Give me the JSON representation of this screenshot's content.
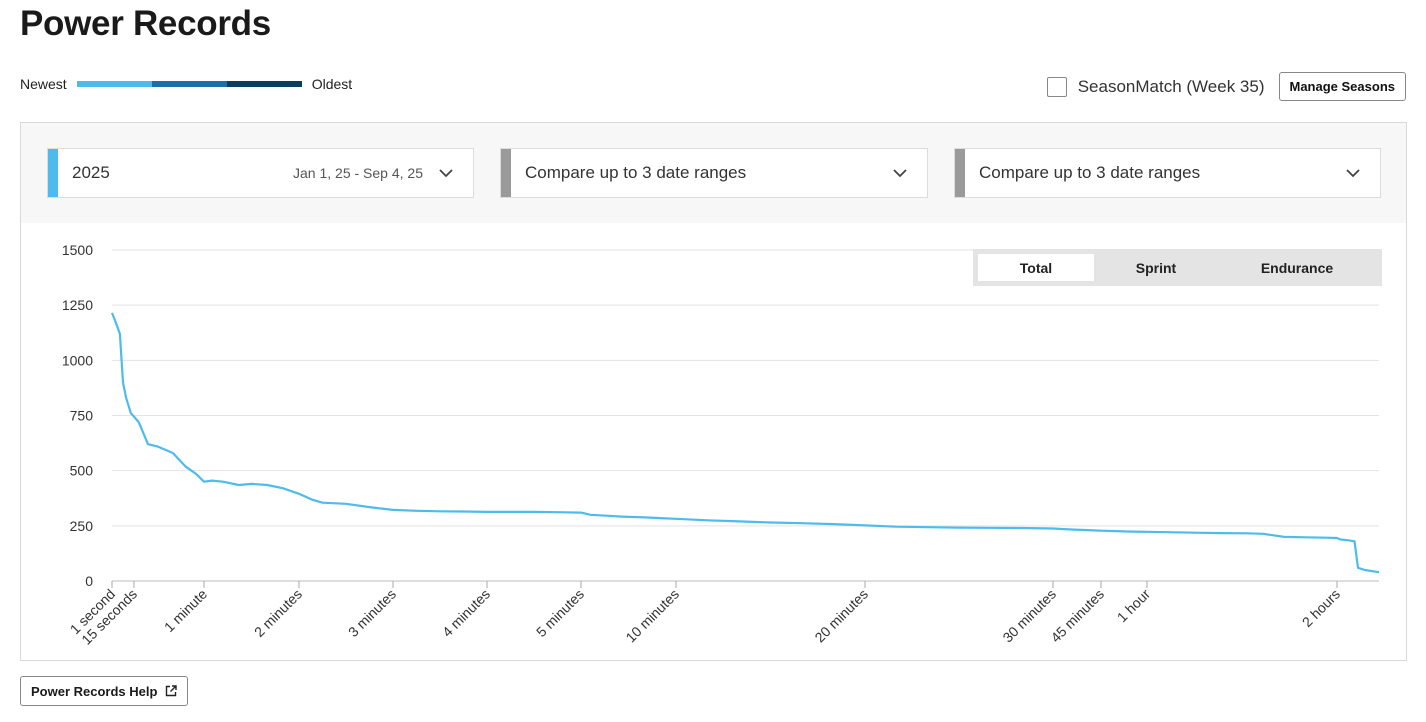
{
  "page": {
    "title": "Power Records"
  },
  "legend": {
    "newest_label": "Newest",
    "oldest_label": "Oldest",
    "colors": [
      "#4dbbec",
      "#1b6ea8",
      "#0b3d5e"
    ]
  },
  "season": {
    "checkbox_checked": false,
    "label": "SeasonMatch (Week 35)",
    "manage_button": "Manage Seasons"
  },
  "ranges": [
    {
      "label": "2025",
      "dates": "Jan 1, 25 - Sep 4, 25",
      "color": "#4dbbec"
    },
    {
      "label": "Compare up to 3 date ranges",
      "dates": "",
      "color": "#9a9a9a"
    },
    {
      "label": "Compare up to 3 date ranges",
      "dates": "",
      "color": "#9a9a9a"
    }
  ],
  "segment": {
    "items": [
      "Total",
      "Sprint",
      "Endurance"
    ],
    "active": "Total"
  },
  "chart_data": {
    "type": "line",
    "title": "",
    "xlabel": "",
    "ylabel": "",
    "ylim": [
      0,
      1500
    ],
    "y_ticks": [
      "0",
      "250",
      "500",
      "750",
      "1000",
      "1250",
      "1500"
    ],
    "x_ticks": [
      {
        "label": "1 second",
        "seconds": 1
      },
      {
        "label": "15 seconds",
        "seconds": 15
      },
      {
        "label": "1 minute",
        "seconds": 60
      },
      {
        "label": "2 minutes",
        "seconds": 120
      },
      {
        "label": "3 minutes",
        "seconds": 180
      },
      {
        "label": "4 minutes",
        "seconds": 240
      },
      {
        "label": "5 minutes",
        "seconds": 300
      },
      {
        "label": "10 minutes",
        "seconds": 600
      },
      {
        "label": "20 minutes",
        "seconds": 1200
      },
      {
        "label": "30 minutes",
        "seconds": 1800
      },
      {
        "label": "45 minutes",
        "seconds": 2700
      },
      {
        "label": "1 hour",
        "seconds": 3600
      },
      {
        "label": "2 hours",
        "seconds": 7200
      }
    ],
    "grid": true,
    "series": [
      {
        "color": "#4dbbec",
        "points": [
          [
            1,
            1215
          ],
          [
            3,
            1180
          ],
          [
            6,
            1120
          ],
          [
            8,
            900
          ],
          [
            10,
            830
          ],
          [
            13,
            760
          ],
          [
            15,
            745
          ],
          [
            18,
            720
          ],
          [
            24,
            620
          ],
          [
            30,
            610
          ],
          [
            40,
            580
          ],
          [
            48,
            520
          ],
          [
            55,
            485
          ],
          [
            60,
            450
          ],
          [
            65,
            455
          ],
          [
            72,
            450
          ],
          [
            82,
            435
          ],
          [
            90,
            440
          ],
          [
            100,
            435
          ],
          [
            110,
            420
          ],
          [
            120,
            395
          ],
          [
            128,
            370
          ],
          [
            135,
            355
          ],
          [
            150,
            350
          ],
          [
            165,
            335
          ],
          [
            180,
            322
          ],
          [
            195,
            318
          ],
          [
            210,
            316
          ],
          [
            225,
            315
          ],
          [
            240,
            313
          ],
          [
            255,
            313
          ],
          [
            270,
            313
          ],
          [
            285,
            312
          ],
          [
            300,
            310
          ],
          [
            330,
            300
          ],
          [
            380,
            296
          ],
          [
            430,
            292
          ],
          [
            500,
            288
          ],
          [
            550,
            285
          ],
          [
            600,
            282
          ],
          [
            700,
            275
          ],
          [
            800,
            270
          ],
          [
            900,
            265
          ],
          [
            1000,
            262
          ],
          [
            1100,
            258
          ],
          [
            1200,
            252
          ],
          [
            1300,
            246
          ],
          [
            1400,
            244
          ],
          [
            1500,
            242
          ],
          [
            1600,
            241
          ],
          [
            1700,
            240
          ],
          [
            1800,
            238
          ],
          [
            2000,
            235
          ],
          [
            2200,
            233
          ],
          [
            2400,
            231
          ],
          [
            2600,
            229
          ],
          [
            2700,
            228
          ],
          [
            3000,
            226
          ],
          [
            3300,
            224
          ],
          [
            3600,
            223
          ],
          [
            4000,
            221
          ],
          [
            4500,
            219
          ],
          [
            5000,
            217
          ],
          [
            5500,
            216
          ],
          [
            5800,
            214
          ],
          [
            6200,
            200
          ],
          [
            6600,
            198
          ],
          [
            7000,
            196
          ],
          [
            7200,
            195
          ],
          [
            7300,
            188
          ],
          [
            7500,
            185
          ],
          [
            7700,
            180
          ],
          [
            7800,
            60
          ],
          [
            8000,
            50
          ],
          [
            8400,
            40
          ]
        ]
      }
    ]
  },
  "help": {
    "label": "Power Records Help"
  }
}
